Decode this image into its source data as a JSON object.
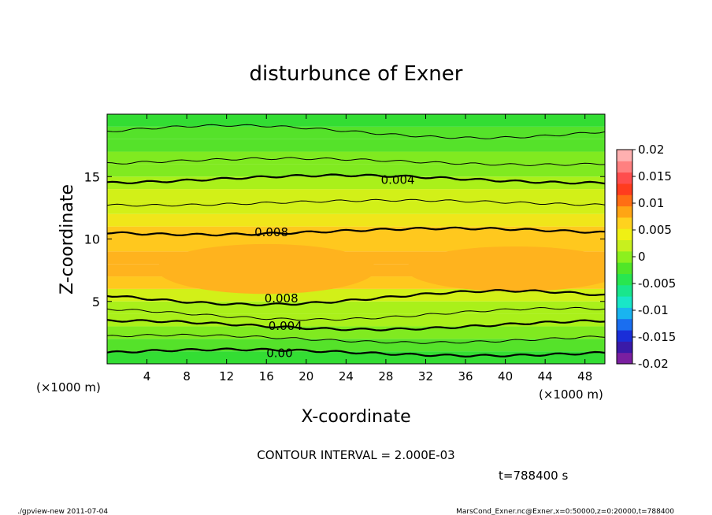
{
  "chart_data": {
    "type": "heatmap",
    "title": "disturbunce of Exner",
    "xlabel": "X-coordinate",
    "ylabel": "Z-coordinate",
    "x_unit": "(×1000 m)",
    "x_unit_right": "(×1000 m)",
    "xlim": [
      0,
      50
    ],
    "ylim": [
      0,
      20
    ],
    "x_ticks": [
      4,
      8,
      12,
      16,
      20,
      24,
      28,
      32,
      36,
      40,
      44,
      48
    ],
    "y_ticks": [
      5,
      10,
      15
    ],
    "colorbar": {
      "levels": [
        -0.02,
        -0.015,
        -0.01,
        -0.005,
        0,
        0.005,
        0.01,
        0.015,
        0.02
      ],
      "labels": [
        "0.02",
        "0.015",
        "0.01",
        "0.005",
        "0",
        "-0.005",
        "-0.01",
        "-0.015",
        "-0.02"
      ],
      "colors": [
        "#7a1fa0",
        "#3a1aa8",
        "#1a2ed8",
        "#1a6ef0",
        "#19b4f0",
        "#19e6c8",
        "#19e68c",
        "#28e650",
        "#50e628",
        "#8cf01e",
        "#c8f01e",
        "#f0f014",
        "#ffd21e",
        "#ffa514",
        "#ff6e14",
        "#ff3c1e",
        "#ff4d4d",
        "#ff8080",
        "#ffb0b0"
      ]
    },
    "contour_levels": [
      0.002,
      0.004,
      0.006,
      0.008
    ],
    "contour_labels": [
      "0.004",
      "0.008",
      "0.008",
      "0.004",
      "0.00"
    ],
    "contour_interval": "CONTOUR INTERVAL = 2.000E-03",
    "description_band_values": {
      "z": [
        0,
        1,
        2,
        3,
        4,
        5,
        6,
        7,
        8,
        9,
        10,
        11,
        12,
        13,
        14,
        15,
        16,
        17,
        18,
        19,
        20
      ],
      "value": [
        0.0,
        0.0015,
        0.003,
        0.004,
        0.005,
        0.006,
        0.0075,
        0.0095,
        0.0105,
        0.0098,
        0.009,
        0.0078,
        0.007,
        0.0062,
        0.0052,
        0.0042,
        0.0035,
        0.003,
        0.0022,
        0.0015,
        0.001
      ]
    }
  },
  "footer": {
    "time": "t=788400 s",
    "left": "./gpview-new   2011-07-04",
    "right": "MarsCond_Exner.nc@Exner,x=0:50000,z=0:20000,t=788400"
  }
}
